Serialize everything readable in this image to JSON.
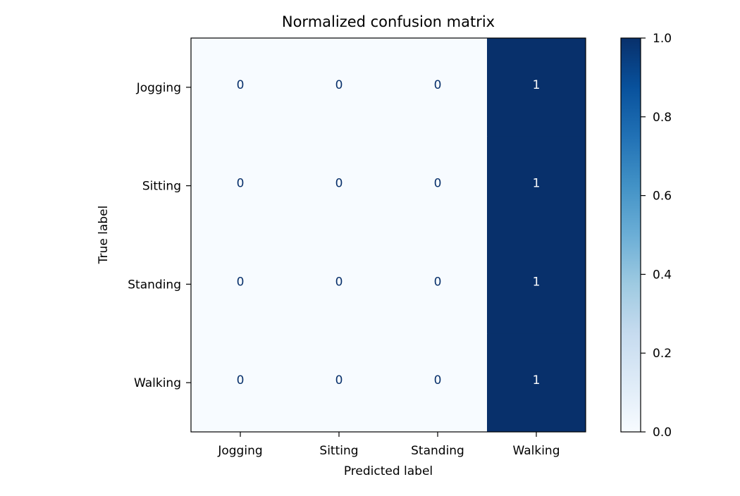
{
  "chart_data": {
    "type": "heatmap",
    "title": "Normalized confusion matrix",
    "xlabel": "Predicted label",
    "ylabel": "True label",
    "x_categories": [
      "Jogging",
      "Sitting",
      "Standing",
      "Walking"
    ],
    "y_categories": [
      "Jogging",
      "Sitting",
      "Standing",
      "Walking"
    ],
    "values": [
      [
        0,
        0,
        0,
        1
      ],
      [
        0,
        0,
        0,
        1
      ],
      [
        0,
        0,
        0,
        1
      ],
      [
        0,
        0,
        0,
        1
      ]
    ],
    "cell_labels": [
      [
        "0",
        "0",
        "0",
        "1"
      ],
      [
        "0",
        "0",
        "0",
        "1"
      ],
      [
        "0",
        "0",
        "0",
        "1"
      ],
      [
        "0",
        "0",
        "0",
        "1"
      ]
    ],
    "colormap": "Blues",
    "color_low": "#f7fbff",
    "color_high": "#08306b",
    "text_color_light": "#ffffff",
    "text_color_dark": "#08306b",
    "colorbar": {
      "range": [
        0.0,
        1.0
      ],
      "ticks": [
        0.0,
        0.2,
        0.4,
        0.6,
        0.8,
        1.0
      ],
      "tick_labels": [
        "0.0",
        "0.2",
        "0.4",
        "0.6",
        "0.8",
        "1.0"
      ]
    },
    "grid": false
  }
}
